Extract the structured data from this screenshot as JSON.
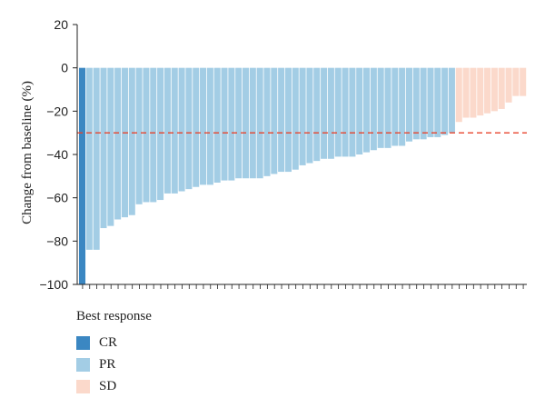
{
  "chart_data": {
    "type": "bar",
    "ylabel": "Change from baseline (%)",
    "ylim": [
      -100,
      20
    ],
    "yticks": [
      20,
      0,
      -20,
      -40,
      -60,
      -80,
      -100
    ],
    "reference_line": -30,
    "reference_line_color": "#e8432c",
    "legend": {
      "title": "Best response",
      "entries": [
        {
          "label": "CR",
          "color": "#3b87c2"
        },
        {
          "label": "PR",
          "color": "#a3cde5"
        },
        {
          "label": "SD",
          "color": "#fbd9cb"
        }
      ]
    },
    "series": [
      {
        "name": "CR",
        "values": [
          -100
        ]
      },
      {
        "name": "PR",
        "values": [
          -84,
          -84,
          -74,
          -73,
          -70,
          -69,
          -68,
          -63,
          -62,
          -62,
          -61,
          -58,
          -58,
          -57,
          -56,
          -55,
          -54,
          -54,
          -53,
          -52,
          -52,
          -51,
          -51,
          -51,
          -51,
          -50,
          -49,
          -48,
          -48,
          -47,
          -45,
          -44,
          -43,
          -42,
          -42,
          -41,
          -41,
          -41,
          -40,
          -39,
          -38,
          -37,
          -37,
          -36,
          -36,
          -34,
          -33,
          -33,
          -32,
          -32,
          -31,
          -30
        ]
      },
      {
        "name": "SD",
        "values": [
          -25,
          -23,
          -23,
          -22,
          -21,
          -20,
          -19,
          -16,
          -13,
          -13
        ]
      }
    ]
  }
}
